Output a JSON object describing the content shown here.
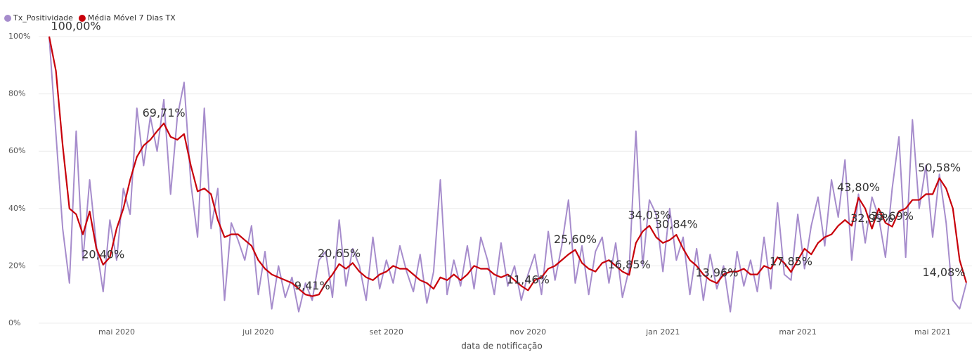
{
  "chart_data": {
    "type": "line",
    "x_label": "data de notificação",
    "legend": "top-left",
    "grid": true,
    "categories": [
      null,
      null,
      null,
      null,
      null,
      null,
      null,
      null,
      null,
      null,
      "mai 2020",
      null,
      null,
      null,
      null,
      null,
      null,
      null,
      null,
      null,
      null,
      null,
      null,
      null,
      null,
      null,
      null,
      null,
      null,
      null,
      null,
      "jul 2020",
      null,
      null,
      null,
      null,
      null,
      null,
      null,
      null,
      null,
      null,
      null,
      null,
      null,
      null,
      null,
      null,
      null,
      null,
      "set 2020",
      null,
      null,
      null,
      null,
      null,
      null,
      null,
      null,
      null,
      null,
      null,
      null,
      null,
      null,
      null,
      null,
      null,
      null,
      null,
      null,
      "nov 2020",
      null,
      null,
      null,
      null,
      null,
      null,
      null,
      null,
      null,
      null,
      null,
      null,
      null,
      null,
      null,
      null,
      null,
      null,
      null,
      "jan 2021",
      null,
      null,
      null,
      null,
      null,
      null,
      null,
      null,
      null,
      null,
      null,
      null,
      null,
      null,
      null,
      null,
      null,
      null,
      null,
      "mar 2021",
      null,
      null,
      null,
      null,
      null,
      null,
      null,
      null,
      null,
      null,
      null,
      null,
      null,
      null,
      null,
      null,
      null,
      null,
      null,
      "mai 2021",
      null,
      null,
      null,
      null,
      null
    ],
    "ylim": [
      0,
      100
    ],
    "yticks": [
      {
        "value": 0,
        "label": "0%"
      },
      {
        "value": 20,
        "label": "20%"
      },
      {
        "value": 40,
        "label": "40%"
      },
      {
        "value": 60,
        "label": "60%"
      },
      {
        "value": 80,
        "label": "80%"
      },
      {
        "value": 100,
        "label": "100%"
      }
    ],
    "series": [
      {
        "name": "Tx_Positividade",
        "color": "#a68ccc",
        "values": [
          100,
          66,
          33,
          14,
          67,
          22,
          50,
          27,
          11,
          36,
          22,
          47,
          38,
          75,
          55,
          72,
          60,
          78,
          45,
          72,
          84,
          49,
          30,
          75,
          33,
          47,
          8,
          35,
          29,
          22,
          34,
          10,
          25,
          5,
          20,
          9,
          16,
          4,
          14,
          8,
          22,
          25,
          9,
          36,
          13,
          26,
          20,
          8,
          30,
          12,
          22,
          14,
          27,
          18,
          11,
          24,
          7,
          18,
          50,
          10,
          22,
          13,
          27,
          12,
          30,
          22,
          10,
          28,
          13,
          20,
          8,
          17,
          24,
          10,
          32,
          15,
          27,
          43,
          14,
          27,
          10,
          25,
          30,
          14,
          28,
          9,
          19,
          67,
          20,
          43,
          38,
          18,
          40,
          22,
          30,
          10,
          26,
          8,
          24,
          12,
          20,
          4,
          25,
          13,
          22,
          11,
          30,
          12,
          42,
          17,
          15,
          38,
          19,
          34,
          44,
          27,
          50,
          37,
          57,
          22,
          45,
          28,
          44,
          37,
          23,
          47,
          65,
          23,
          71,
          40,
          55,
          30,
          52,
          35,
          8,
          5,
          14
        ]
      },
      {
        "name": "Média Móvel 7 Dias TX",
        "color": "#c8000a",
        "values": [
          100,
          88,
          62,
          40,
          38,
          31,
          39,
          26,
          20.4,
          23,
          33,
          40,
          50,
          58,
          62,
          64,
          67,
          69.71,
          65,
          64,
          66,
          55,
          46,
          47,
          45,
          36,
          30,
          31,
          31,
          29,
          27,
          22,
          19,
          17,
          16,
          15,
          14,
          12,
          10,
          9.41,
          10,
          14,
          17,
          20.65,
          19,
          21,
          18,
          16,
          15,
          17,
          18,
          20,
          19,
          19,
          17,
          15,
          14,
          12,
          16,
          15,
          17,
          15,
          17,
          20,
          19,
          19,
          17,
          16,
          17,
          15,
          13,
          11.46,
          15,
          16,
          19,
          20,
          22,
          24,
          25.6,
          21,
          19,
          18,
          21,
          22,
          20,
          18,
          16.85,
          28,
          32,
          34.03,
          30,
          28,
          29,
          30.84,
          26,
          22,
          20,
          17,
          15,
          13.96,
          17,
          18,
          18,
          19,
          17,
          17,
          20,
          19,
          23,
          21,
          17.85,
          22,
          26,
          24,
          28,
          30,
          31,
          34,
          36,
          34,
          43.8,
          40,
          32.99,
          40,
          35,
          33.69,
          39,
          40,
          43,
          43,
          45,
          45,
          50.58,
          47,
          40,
          22,
          14.08
        ],
        "value_labels": [
          "100,00%",
          null,
          null,
          null,
          null,
          null,
          null,
          null,
          "20,40%",
          null,
          null,
          null,
          null,
          null,
          null,
          null,
          null,
          "69,71%",
          null,
          null,
          null,
          null,
          null,
          null,
          null,
          null,
          null,
          null,
          null,
          null,
          null,
          null,
          null,
          null,
          null,
          null,
          null,
          null,
          null,
          "9,41%",
          null,
          null,
          null,
          "20,65%",
          null,
          null,
          null,
          null,
          null,
          null,
          null,
          null,
          null,
          null,
          null,
          null,
          null,
          null,
          null,
          null,
          null,
          null,
          null,
          null,
          null,
          null,
          null,
          null,
          null,
          null,
          null,
          "11,46%",
          null,
          null,
          null,
          null,
          null,
          null,
          "25,60%",
          null,
          null,
          null,
          null,
          null,
          null,
          null,
          "16,85%",
          null,
          null,
          "34,03%",
          null,
          null,
          null,
          "30,84%",
          null,
          null,
          null,
          null,
          null,
          "13,96%",
          null,
          null,
          null,
          null,
          null,
          null,
          null,
          null,
          null,
          null,
          "17,85%",
          null,
          null,
          null,
          null,
          null,
          null,
          null,
          null,
          null,
          "43,80%",
          null,
          "32,99%",
          null,
          null,
          "33,69%",
          null,
          null,
          null,
          null,
          null,
          null,
          "50,58%",
          null,
          null,
          null,
          "14,08%"
        ]
      }
    ]
  }
}
